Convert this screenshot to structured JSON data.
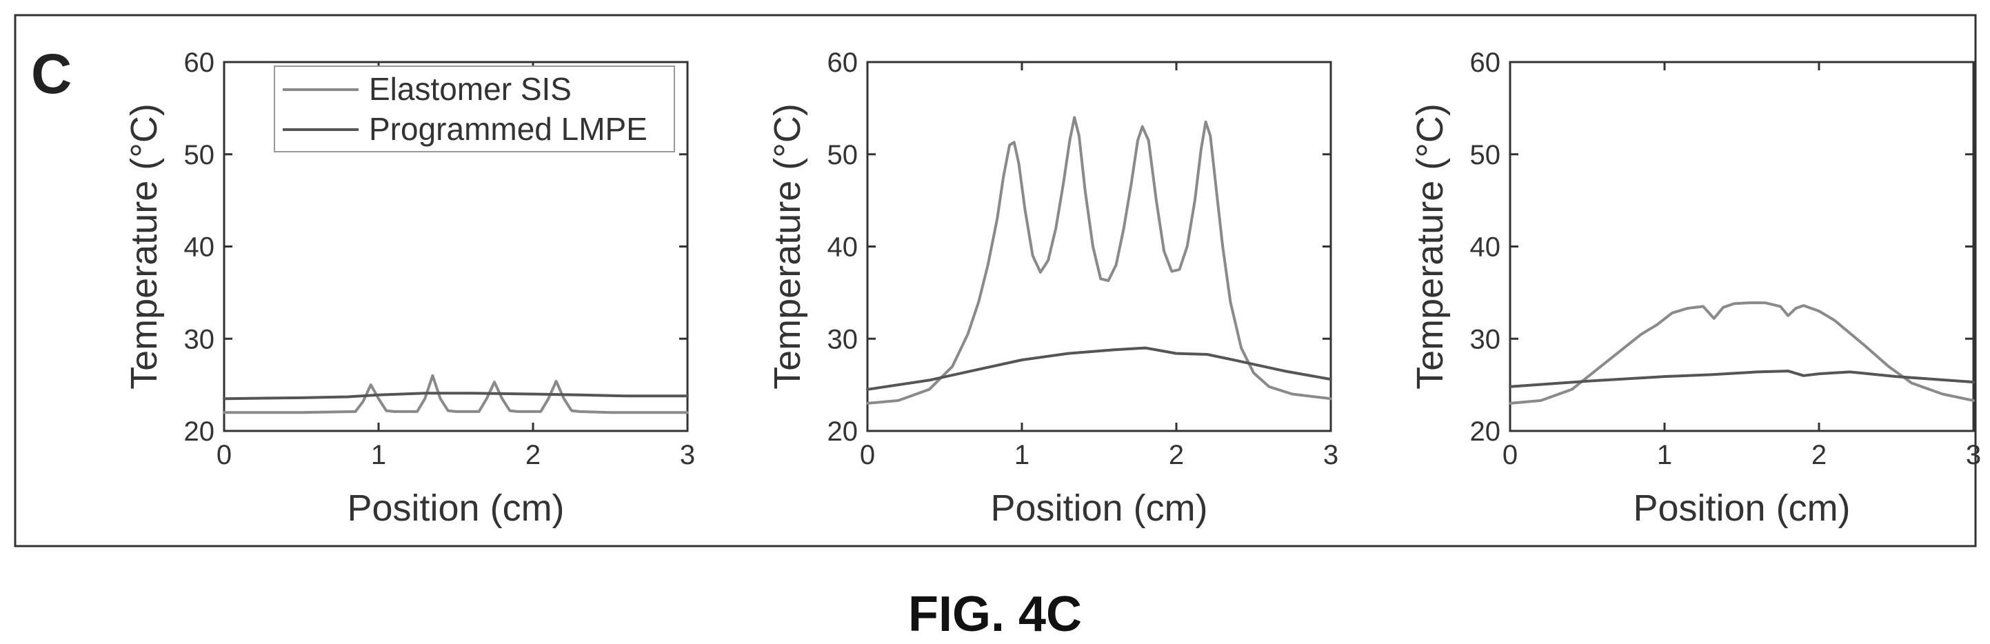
{
  "panel_label": "C",
  "figure_caption": "FIG. 4C",
  "legend": {
    "entries": [
      "Elastomer SIS",
      "Programmed LMPE"
    ]
  },
  "chart_data": [
    {
      "type": "line",
      "xlabel": "Position (cm)",
      "ylabel": "Temperature (°C)",
      "xlim": [
        0,
        3
      ],
      "ylim": [
        20,
        60
      ],
      "xticks": [
        0,
        1,
        2,
        3
      ],
      "yticks": [
        20,
        30,
        40,
        50,
        60
      ],
      "grid": false,
      "legend_position": "top-left",
      "series": [
        {
          "name": "Elastomer SIS",
          "x": [
            0,
            0.5,
            0.85,
            0.9,
            0.95,
            1.0,
            1.05,
            1.1,
            1.25,
            1.3,
            1.35,
            1.4,
            1.45,
            1.5,
            1.65,
            1.7,
            1.75,
            1.8,
            1.85,
            1.9,
            2.05,
            2.1,
            2.15,
            2.2,
            2.25,
            2.3,
            2.5,
            3.0
          ],
          "y": [
            22,
            22,
            22.1,
            23.2,
            25,
            23.5,
            22.2,
            22.1,
            22.1,
            23.5,
            26,
            23.5,
            22.2,
            22.1,
            22.1,
            23.5,
            25.3,
            23.5,
            22.2,
            22.1,
            22.1,
            23.5,
            25.4,
            23.5,
            22.2,
            22.1,
            22,
            22
          ]
        },
        {
          "name": "Programmed LMPE",
          "x": [
            0,
            0.5,
            0.8,
            1.0,
            1.3,
            1.6,
            2.0,
            2.3,
            2.6,
            3.0
          ],
          "y": [
            23.5,
            23.6,
            23.7,
            23.9,
            24.1,
            24.1,
            24,
            23.9,
            23.8,
            23.8
          ]
        }
      ]
    },
    {
      "type": "line",
      "xlabel": "Position (cm)",
      "ylabel": "Temperature (°C)",
      "xlim": [
        0,
        3
      ],
      "ylim": [
        20,
        60
      ],
      "xticks": [
        0,
        1,
        2,
        3
      ],
      "yticks": [
        20,
        30,
        40,
        50,
        60
      ],
      "grid": false,
      "series": [
        {
          "name": "Elastomer SIS",
          "x": [
            0,
            0.2,
            0.4,
            0.55,
            0.65,
            0.72,
            0.78,
            0.84,
            0.88,
            0.92,
            0.95,
            0.98,
            1.02,
            1.07,
            1.12,
            1.17,
            1.22,
            1.27,
            1.31,
            1.34,
            1.37,
            1.41,
            1.46,
            1.51,
            1.56,
            1.61,
            1.66,
            1.71,
            1.75,
            1.78,
            1.82,
            1.87,
            1.92,
            1.97,
            2.02,
            2.07,
            2.12,
            2.16,
            2.19,
            2.22,
            2.26,
            2.3,
            2.35,
            2.42,
            2.5,
            2.6,
            2.75,
            3.0
          ],
          "y": [
            23,
            23.3,
            24.5,
            27,
            30.5,
            34,
            38,
            43,
            47.5,
            51,
            51.3,
            49,
            44,
            39,
            37.2,
            38.5,
            42,
            47,
            51.5,
            54,
            52,
            46,
            40,
            36.5,
            36.3,
            38,
            42,
            47,
            51.5,
            53,
            51.5,
            45,
            39.5,
            37.3,
            37.5,
            40,
            45,
            50.5,
            53.5,
            52,
            46,
            40,
            34,
            29,
            26.3,
            24.8,
            24,
            23.5
          ]
        },
        {
          "name": "Programmed LMPE",
          "x": [
            0,
            0.4,
            0.7,
            1.0,
            1.3,
            1.6,
            1.8,
            2.0,
            2.2,
            2.4,
            2.7,
            3.0
          ],
          "y": [
            24.5,
            25.5,
            26.6,
            27.7,
            28.4,
            28.8,
            29,
            28.4,
            28.3,
            27.6,
            26.5,
            25.6
          ]
        }
      ]
    },
    {
      "type": "line",
      "xlabel": "Position (cm)",
      "ylabel": "Temperature (°C)",
      "xlim": [
        0,
        3
      ],
      "ylim": [
        20,
        60
      ],
      "xticks": [
        0,
        1,
        2,
        3
      ],
      "yticks": [
        20,
        30,
        40,
        50,
        60
      ],
      "grid": false,
      "series": [
        {
          "name": "Elastomer SIS",
          "x": [
            0,
            0.2,
            0.4,
            0.55,
            0.7,
            0.85,
            0.95,
            1.05,
            1.15,
            1.25,
            1.32,
            1.38,
            1.45,
            1.55,
            1.65,
            1.75,
            1.8,
            1.85,
            1.9,
            2.0,
            2.1,
            2.2,
            2.3,
            2.45,
            2.6,
            2.8,
            3.0
          ],
          "y": [
            23,
            23.3,
            24.5,
            26.5,
            28.5,
            30.5,
            31.5,
            32.8,
            33.3,
            33.5,
            32.2,
            33.4,
            33.8,
            33.9,
            33.9,
            33.5,
            32.5,
            33.3,
            33.6,
            33,
            32,
            30.6,
            29.2,
            27,
            25.2,
            24,
            23.3
          ]
        },
        {
          "name": "Programmed LMPE",
          "x": [
            0,
            0.5,
            1.0,
            1.3,
            1.6,
            1.8,
            1.9,
            2.0,
            2.2,
            2.5,
            3.0
          ],
          "y": [
            24.8,
            25.4,
            25.9,
            26.1,
            26.4,
            26.5,
            26,
            26.2,
            26.4,
            25.9,
            25.3
          ]
        }
      ]
    }
  ]
}
